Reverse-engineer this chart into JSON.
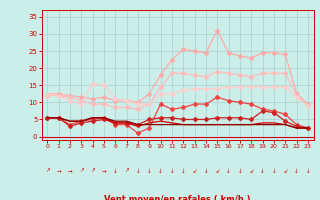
{
  "bg_color": "#cceee8",
  "grid_color": "#aacccc",
  "xlabel": "Vent moyen/en rafales ( km/h )",
  "xlabel_color": "#cc0000",
  "tick_color": "#cc0000",
  "x_ticks": [
    0,
    1,
    2,
    3,
    4,
    5,
    6,
    7,
    8,
    9,
    10,
    11,
    12,
    13,
    14,
    15,
    16,
    17,
    18,
    19,
    20,
    21,
    22,
    23
  ],
  "ylim": [
    -1,
    37
  ],
  "xlim": [
    -0.5,
    23.5
  ],
  "yticks": [
    0,
    5,
    10,
    15,
    20,
    25,
    30,
    35
  ],
  "series": [
    {
      "color": "#ffaaaa",
      "marker": "D",
      "markersize": 2.0,
      "linewidth": 0.9,
      "values": [
        12.5,
        12.5,
        12.0,
        11.5,
        11.0,
        11.5,
        10.5,
        10.5,
        10.0,
        12.5,
        18.0,
        22.5,
        25.5,
        25.0,
        24.5,
        31.0,
        24.5,
        23.5,
        23.0,
        24.5,
        24.5,
        24.0,
        12.5,
        9.5
      ]
    },
    {
      "color": "#ffbbbb",
      "marker": "D",
      "markersize": 2.0,
      "linewidth": 0.9,
      "values": [
        12.0,
        12.0,
        11.5,
        10.5,
        9.5,
        9.5,
        8.5,
        8.5,
        8.0,
        9.5,
        14.5,
        18.5,
        18.5,
        18.0,
        17.5,
        19.0,
        18.5,
        18.0,
        17.5,
        18.5,
        18.5,
        18.5,
        12.0,
        9.0
      ]
    },
    {
      "color": "#ffcccc",
      "marker": "D",
      "markersize": 2.0,
      "linewidth": 0.9,
      "values": [
        12.5,
        12.0,
        10.5,
        9.5,
        15.5,
        15.0,
        11.0,
        10.5,
        9.5,
        9.5,
        12.5,
        12.5,
        13.5,
        14.0,
        14.0,
        14.0,
        14.5,
        14.5,
        14.5,
        14.5,
        14.5,
        14.5,
        11.5,
        9.0
      ]
    },
    {
      "color": "#ee4444",
      "marker": "D",
      "markersize": 2.0,
      "linewidth": 0.9,
      "values": [
        5.5,
        5.5,
        3.5,
        4.5,
        5.0,
        5.5,
        3.5,
        3.5,
        1.0,
        2.5,
        9.5,
        8.0,
        8.5,
        9.5,
        9.5,
        11.5,
        10.5,
        10.0,
        9.5,
        8.0,
        7.5,
        6.5,
        3.5,
        2.5
      ]
    },
    {
      "color": "#cc2222",
      "marker": "D",
      "markersize": 2.0,
      "linewidth": 0.9,
      "values": [
        5.5,
        5.5,
        3.0,
        4.0,
        4.5,
        5.0,
        4.0,
        4.0,
        3.5,
        5.0,
        5.5,
        5.5,
        5.0,
        5.0,
        5.0,
        5.5,
        5.5,
        5.5,
        5.0,
        7.5,
        7.0,
        4.5,
        3.0,
        2.5
      ]
    },
    {
      "color": "#cc0000",
      "marker": "None",
      "markersize": 0,
      "linewidth": 0.9,
      "values": [
        5.5,
        5.5,
        4.5,
        4.5,
        5.5,
        5.5,
        4.0,
        4.0,
        3.0,
        4.0,
        4.5,
        4.0,
        3.5,
        3.5,
        3.5,
        3.5,
        3.5,
        3.5,
        3.5,
        4.0,
        4.0,
        3.5,
        2.5,
        2.5
      ]
    },
    {
      "color": "#880000",
      "marker": "None",
      "markersize": 0,
      "linewidth": 0.9,
      "values": [
        5.5,
        5.5,
        4.5,
        4.5,
        5.5,
        5.5,
        4.5,
        4.5,
        3.5,
        3.5,
        3.5,
        3.5,
        3.5,
        3.5,
        3.5,
        3.5,
        3.5,
        3.5,
        3.5,
        3.5,
        3.5,
        3.5,
        2.5,
        2.5
      ]
    }
  ],
  "arrows": [
    "↗",
    "→",
    "→",
    "↗",
    "↗",
    "→",
    "↓",
    "↗",
    "↓",
    "↓",
    "↓",
    "↓",
    "↓",
    "↙",
    "↓",
    "↙",
    "↓",
    "↓",
    "↙",
    "↓",
    "↓",
    "↙",
    "↓",
    "↓"
  ]
}
